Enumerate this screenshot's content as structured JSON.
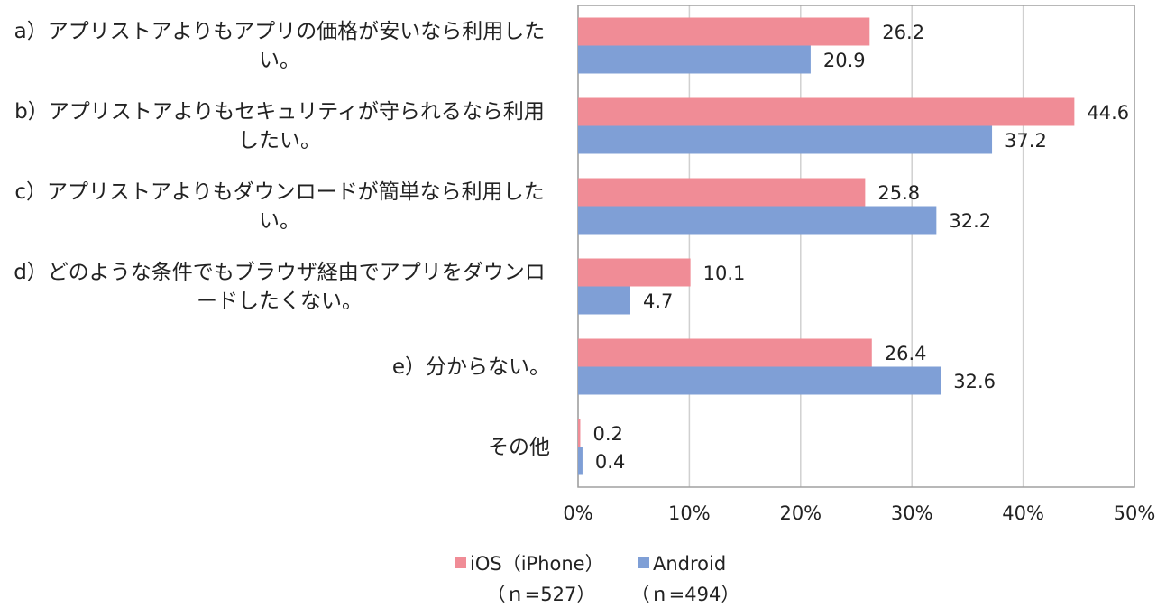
{
  "chart_data": {
    "type": "barh",
    "categories": [
      "a）アプリストアよりもアプリの価格が安いなら利用したい。",
      "b）アプリストアよりもセキュリティが守られるなら利用したい。",
      "c）アプリストアよりもダウンロードが簡単なら利用したい。",
      "d）どのような条件でもブラウザ経由でアプリをダウンロードしたくない。",
      "e）分からない。",
      "その他"
    ],
    "series": [
      {
        "name": "iOS（iPhone）",
        "color": "#f08c96",
        "values": [
          26.2,
          44.6,
          25.8,
          10.1,
          26.4,
          0.2
        ]
      },
      {
        "name": "Android",
        "color": "#7f9fd6",
        "values": [
          20.9,
          37.2,
          32.2,
          4.7,
          32.6,
          0.4
        ]
      }
    ],
    "xlim": [
      0,
      50
    ],
    "xticks": [
      {
        "value": 0,
        "label": "0%"
      },
      {
        "value": 10,
        "label": "10%"
      },
      {
        "value": 20,
        "label": "20%"
      },
      {
        "value": 30,
        "label": "30%"
      },
      {
        "value": 40,
        "label": "40%"
      },
      {
        "value": 50,
        "label": "50%"
      }
    ],
    "grid": true,
    "legend_position": "bottom",
    "sample_sizes": [
      "（ｎ=527）",
      "（ｎ=494）"
    ]
  }
}
